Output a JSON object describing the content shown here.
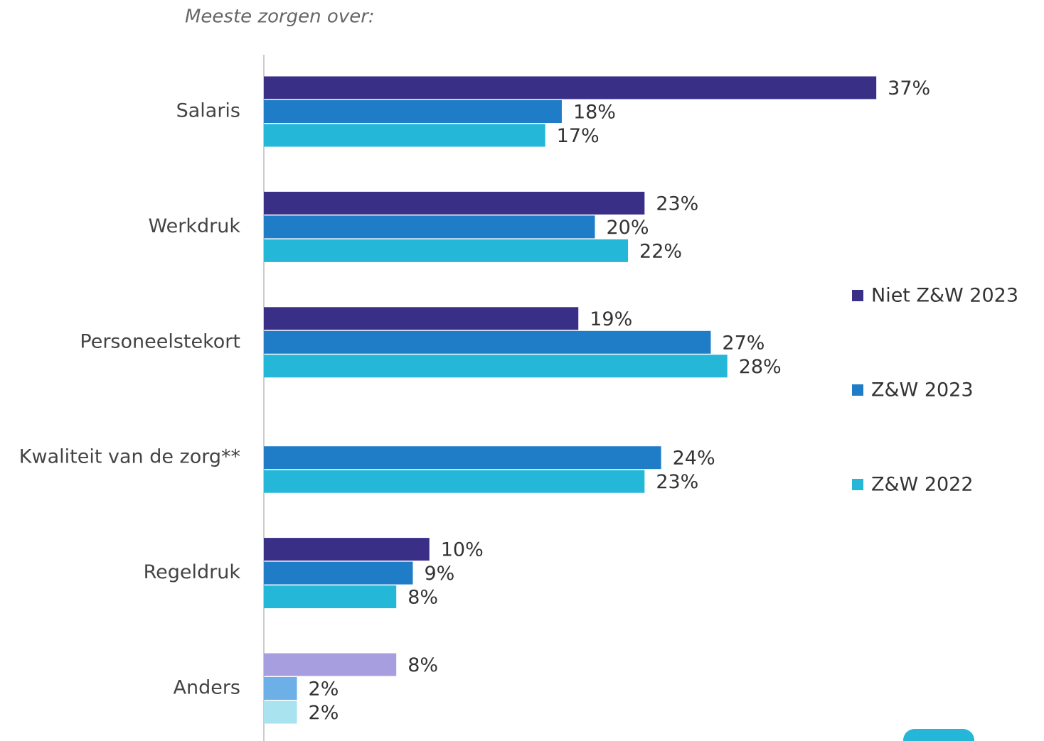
{
  "chart_data": {
    "type": "hbar",
    "title": "Meeste zorgen over:",
    "categories": [
      "Salaris",
      "Werkdruk",
      "Personeelstekort",
      "Kwaliteit van de zorg**",
      "Regeldruk",
      "Anders"
    ],
    "series": [
      {
        "name": "Niet Z&W 2023",
        "color": "#3a2f87",
        "colors": [
          "#3a2f87",
          "#3a2f87",
          "#3a2f87",
          "#3a2f87",
          "#3a2f87",
          "#a79ee0"
        ],
        "values": [
          37,
          23,
          19,
          null,
          10,
          8
        ],
        "value_labels": [
          "37%",
          "23%",
          "19%",
          null,
          "10%",
          "8%"
        ]
      },
      {
        "name": "Z&W 2023",
        "color": "#1f7dc8",
        "colors": [
          "#1f7dc8",
          "#1f7dc8",
          "#1f7dc8",
          "#1f7dc8",
          "#1f7dc8",
          "#6db0e8"
        ],
        "values": [
          18,
          20,
          27,
          24,
          9,
          2
        ],
        "value_labels": [
          "18%",
          "20%",
          "27%",
          "24%",
          "9%",
          "2%"
        ]
      },
      {
        "name": "Z&W 2022",
        "color": "#25b7d8",
        "colors": [
          "#25b7d8",
          "#25b7d8",
          "#25b7d8",
          "#25b7d8",
          "#25b7d8",
          "#a9e3ef"
        ],
        "values": [
          17,
          22,
          28,
          23,
          8,
          2
        ],
        "value_labels": [
          "17%",
          "22%",
          "28%",
          "23%",
          "8%",
          "2%"
        ]
      }
    ],
    "xlim": [
      0,
      40
    ],
    "legend": "right"
  }
}
